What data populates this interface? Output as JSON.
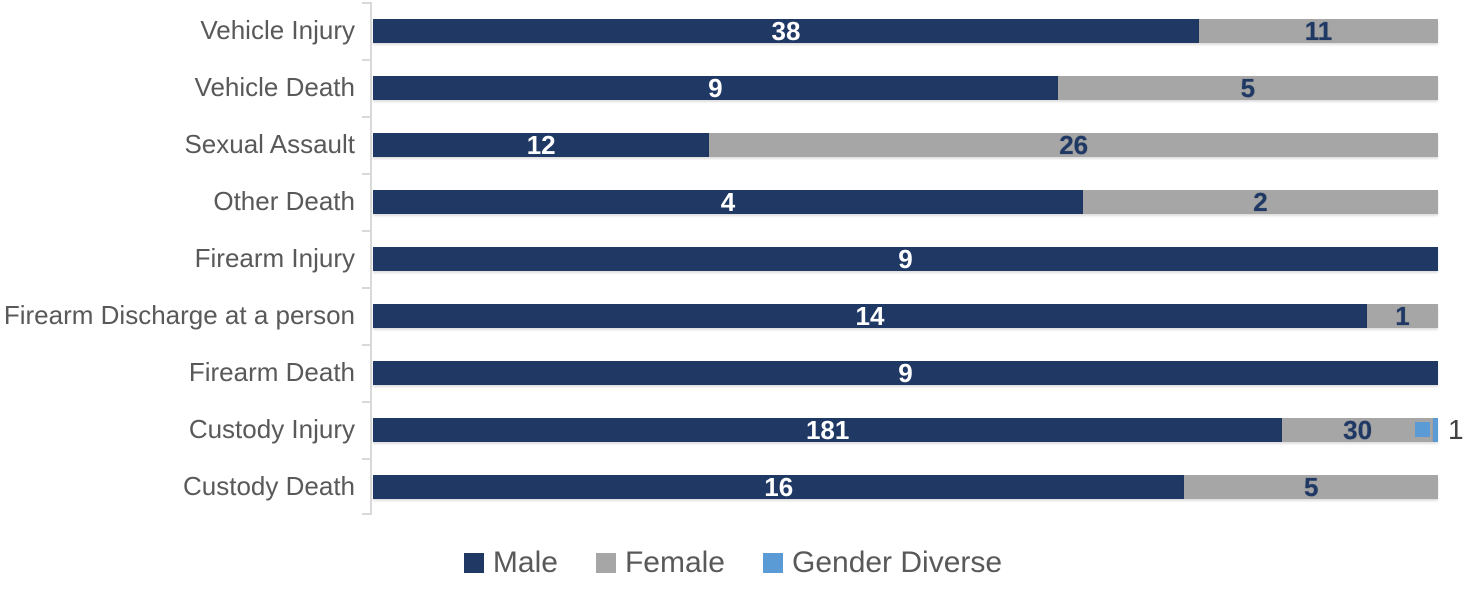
{
  "chart_data": {
    "type": "bar",
    "orientation": "horizontal",
    "stacking": "percent",
    "title": "",
    "categories": [
      "Vehicle Injury",
      "Vehicle Death",
      "Sexual Assault",
      "Other Death",
      "Firearm Injury",
      "Firearm Discharge at a person",
      "Firearm Death",
      "Custody Injury",
      "Custody Death"
    ],
    "series": [
      {
        "name": "Male",
        "color": "#1F3864",
        "label_color": "#FFFFFF",
        "values": [
          38,
          9,
          12,
          4,
          9,
          14,
          9,
          181,
          16
        ]
      },
      {
        "name": "Female",
        "color": "#A6A6A6",
        "label_color": "#1F3864",
        "values": [
          11,
          5,
          26,
          2,
          0,
          1,
          0,
          30,
          5
        ]
      },
      {
        "name": "Gender Diverse",
        "color": "#5B9BD5",
        "label_color": "#404040",
        "values": [
          0,
          0,
          0,
          0,
          0,
          0,
          0,
          1,
          0
        ]
      }
    ],
    "legend": {
      "position": "bottom",
      "items": [
        "Male",
        "Female",
        "Gender Diverse"
      ]
    },
    "axis": {
      "line_color": "#D9D9D9",
      "tick_color": "#D9D9D9"
    },
    "category_label_color": "#595959",
    "legend_label_color": "#595959",
    "background": "#FFFFFF",
    "gridlines": false
  }
}
